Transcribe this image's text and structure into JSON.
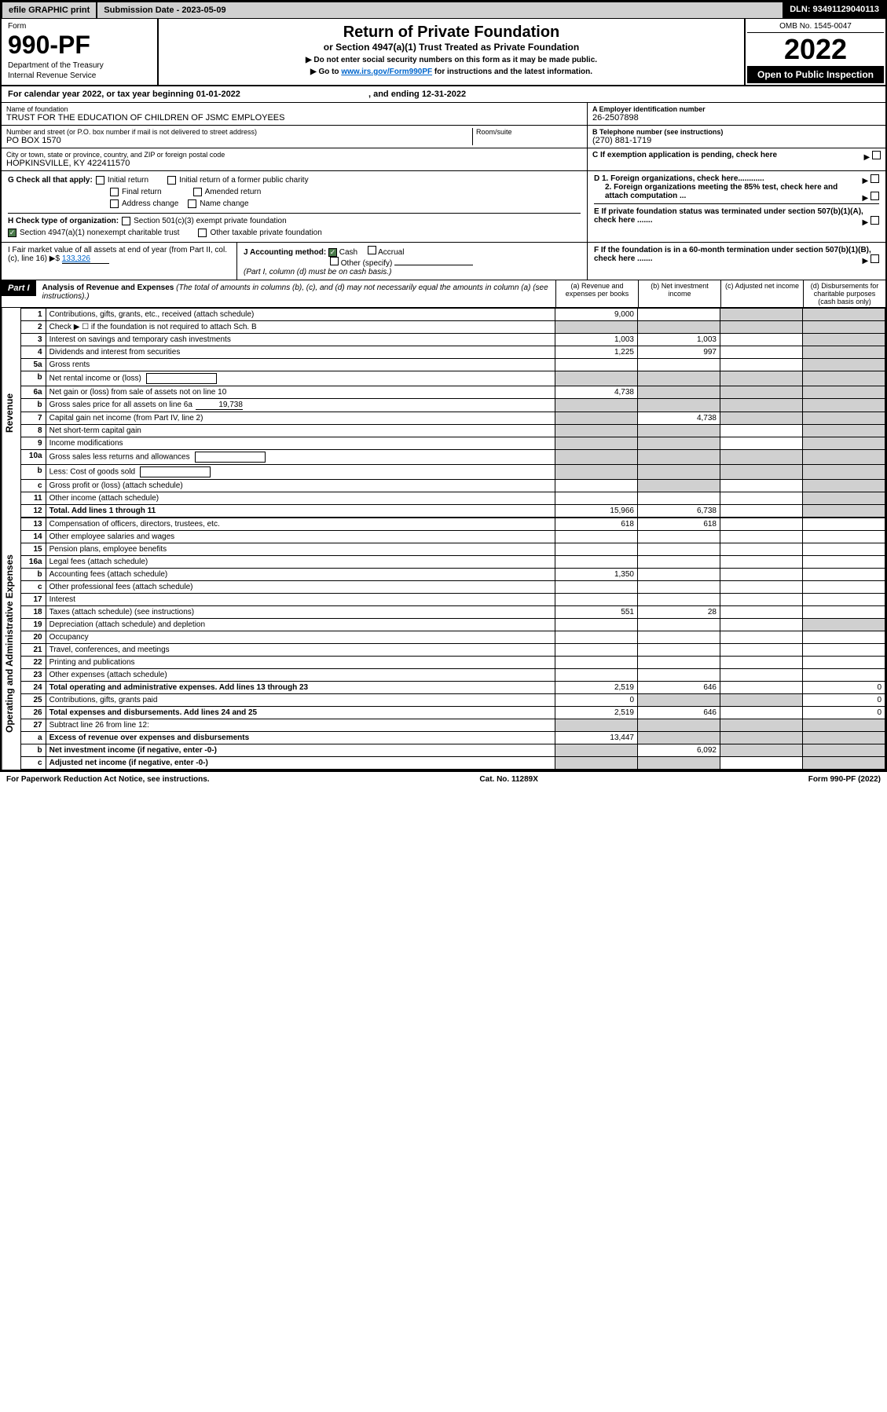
{
  "top": {
    "efile": "efile GRAPHIC print",
    "submission": "Submission Date - 2023-05-09",
    "dln": "DLN: 93491129040113"
  },
  "header": {
    "form_label": "Form",
    "form_num": "990-PF",
    "dept": "Department of the Treasury",
    "irs": "Internal Revenue Service",
    "title": "Return of Private Foundation",
    "subtitle": "or Section 4947(a)(1) Trust Treated as Private Foundation",
    "note1": "▶ Do not enter social security numbers on this form as it may be made public.",
    "note2_pre": "▶ Go to ",
    "note2_link": "www.irs.gov/Form990PF",
    "note2_post": " for instructions and the latest information.",
    "omb": "OMB No. 1545-0047",
    "year": "2022",
    "inspect": "Open to Public Inspection"
  },
  "calyear": "For calendar year 2022, or tax year beginning 01-01-2022",
  "calyear_end": ", and ending 12-31-2022",
  "name_label": "Name of foundation",
  "name": "TRUST FOR THE EDUCATION OF CHILDREN OF JSMC EMPLOYEES",
  "addr_label": "Number and street (or P.O. box number if mail is not delivered to street address)",
  "addr": "PO BOX 1570",
  "room_label": "Room/suite",
  "city_label": "City or town, state or province, country, and ZIP or foreign postal code",
  "city": "HOPKINSVILLE, KY  422411570",
  "ein_label": "A Employer identification number",
  "ein": "26-2507898",
  "tel_label": "B Telephone number (see instructions)",
  "tel": "(270) 881-1719",
  "c_label": "C If exemption application is pending, check here",
  "d1": "D 1. Foreign organizations, check here............",
  "d2": "2. Foreign organizations meeting the 85% test, check here and attach computation ...",
  "e_label": "E  If private foundation status was terminated under section 507(b)(1)(A), check here .......",
  "f_label": "F  If the foundation is in a 60-month termination under section 507(b)(1)(B), check here .......",
  "g_label": "G Check all that apply:",
  "g_opts": [
    "Initial return",
    "Initial return of a former public charity",
    "Final return",
    "Amended return",
    "Address change",
    "Name change"
  ],
  "h_label": "H Check type of organization:",
  "h_501": "Section 501(c)(3) exempt private foundation",
  "h_4947": "Section 4947(a)(1) nonexempt charitable trust",
  "h_other": "Other taxable private foundation",
  "i_label": "I Fair market value of all assets at end of year (from Part II, col. (c), line 16)",
  "i_val": "133,326",
  "j_label": "J Accounting method:",
  "j_cash": "Cash",
  "j_accrual": "Accrual",
  "j_other": "Other (specify)",
  "j_note": "(Part I, column (d) must be on cash basis.)",
  "part1": "Part I",
  "part1_title": "Analysis of Revenue and Expenses",
  "part1_note": "(The total of amounts in columns (b), (c), and (d) may not necessarily equal the amounts in column (a) (see instructions).)",
  "cols": {
    "a": "(a) Revenue and expenses per books",
    "b": "(b) Net investment income",
    "c": "(c) Adjusted net income",
    "d": "(d) Disbursements for charitable purposes (cash basis only)"
  },
  "sections": {
    "revenue": "Revenue",
    "expenses": "Operating and Administrative Expenses"
  },
  "rows": [
    {
      "n": "1",
      "desc": "Contributions, gifts, grants, etc., received (attach schedule)",
      "a": "9,000",
      "b": "",
      "c": "",
      "d": "",
      "d_shade": true,
      "c_shade": true
    },
    {
      "n": "2",
      "desc": "Check ▶ ☐ if the foundation is not required to attach Sch. B",
      "a": "",
      "b": "",
      "c": "",
      "d": "",
      "all_shade": true
    },
    {
      "n": "3",
      "desc": "Interest on savings and temporary cash investments",
      "a": "1,003",
      "b": "1,003",
      "c": "",
      "d": "",
      "d_shade": true
    },
    {
      "n": "4",
      "desc": "Dividends and interest from securities",
      "a": "1,225",
      "b": "997",
      "c": "",
      "d": "",
      "d_shade": true
    },
    {
      "n": "5a",
      "desc": "Gross rents",
      "a": "",
      "b": "",
      "c": "",
      "d": "",
      "d_shade": true
    },
    {
      "n": "b",
      "desc": "Net rental income or (loss)",
      "a": "",
      "b": "",
      "c": "",
      "d": "",
      "all_shade": true,
      "inline_box": true
    },
    {
      "n": "6a",
      "desc": "Net gain or (loss) from sale of assets not on line 10",
      "a": "4,738",
      "b": "",
      "c": "",
      "d": "",
      "bcd_shade": true
    },
    {
      "n": "b",
      "desc": "Gross sales price for all assets on line 6a",
      "inline_val": "19,738",
      "a": "",
      "b": "",
      "c": "",
      "d": "",
      "all_shade": true
    },
    {
      "n": "7",
      "desc": "Capital gain net income (from Part IV, line 2)",
      "a": "",
      "b": "4,738",
      "c": "",
      "d": "",
      "a_shade": true,
      "cd_shade": true
    },
    {
      "n": "8",
      "desc": "Net short-term capital gain",
      "a": "",
      "b": "",
      "c": "",
      "d": "",
      "ab_shade": true,
      "d_shade": true
    },
    {
      "n": "9",
      "desc": "Income modifications",
      "a": "",
      "b": "",
      "c": "",
      "d": "",
      "ab_shade": true,
      "d_shade": true
    },
    {
      "n": "10a",
      "desc": "Gross sales less returns and allowances",
      "a": "",
      "b": "",
      "c": "",
      "d": "",
      "all_shade": true,
      "inline_box": true
    },
    {
      "n": "b",
      "desc": "Less: Cost of goods sold",
      "a": "",
      "b": "",
      "c": "",
      "d": "",
      "all_shade": true,
      "inline_box": true
    },
    {
      "n": "c",
      "desc": "Gross profit or (loss) (attach schedule)",
      "a": "",
      "b": "",
      "c": "",
      "d": "",
      "b_shade": true,
      "d_shade": true
    },
    {
      "n": "11",
      "desc": "Other income (attach schedule)",
      "a": "",
      "b": "",
      "c": "",
      "d": "",
      "d_shade": true
    },
    {
      "n": "12",
      "desc": "Total. Add lines 1 through 11",
      "a": "15,966",
      "b": "6,738",
      "c": "",
      "d": "",
      "d_shade": true,
      "bold": true
    }
  ],
  "exp_rows": [
    {
      "n": "13",
      "desc": "Compensation of officers, directors, trustees, etc.",
      "a": "618",
      "b": "618",
      "c": "",
      "d": ""
    },
    {
      "n": "14",
      "desc": "Other employee salaries and wages",
      "a": "",
      "b": "",
      "c": "",
      "d": ""
    },
    {
      "n": "15",
      "desc": "Pension plans, employee benefits",
      "a": "",
      "b": "",
      "c": "",
      "d": ""
    },
    {
      "n": "16a",
      "desc": "Legal fees (attach schedule)",
      "a": "",
      "b": "",
      "c": "",
      "d": ""
    },
    {
      "n": "b",
      "desc": "Accounting fees (attach schedule)",
      "a": "1,350",
      "b": "",
      "c": "",
      "d": ""
    },
    {
      "n": "c",
      "desc": "Other professional fees (attach schedule)",
      "a": "",
      "b": "",
      "c": "",
      "d": ""
    },
    {
      "n": "17",
      "desc": "Interest",
      "a": "",
      "b": "",
      "c": "",
      "d": ""
    },
    {
      "n": "18",
      "desc": "Taxes (attach schedule) (see instructions)",
      "a": "551",
      "b": "28",
      "c": "",
      "d": ""
    },
    {
      "n": "19",
      "desc": "Depreciation (attach schedule) and depletion",
      "a": "",
      "b": "",
      "c": "",
      "d": "",
      "d_shade": true
    },
    {
      "n": "20",
      "desc": "Occupancy",
      "a": "",
      "b": "",
      "c": "",
      "d": ""
    },
    {
      "n": "21",
      "desc": "Travel, conferences, and meetings",
      "a": "",
      "b": "",
      "c": "",
      "d": ""
    },
    {
      "n": "22",
      "desc": "Printing and publications",
      "a": "",
      "b": "",
      "c": "",
      "d": ""
    },
    {
      "n": "23",
      "desc": "Other expenses (attach schedule)",
      "a": "",
      "b": "",
      "c": "",
      "d": ""
    },
    {
      "n": "24",
      "desc": "Total operating and administrative expenses. Add lines 13 through 23",
      "a": "2,519",
      "b": "646",
      "c": "",
      "d": "0",
      "bold": true
    },
    {
      "n": "25",
      "desc": "Contributions, gifts, grants paid",
      "a": "0",
      "b": "",
      "c": "",
      "d": "0",
      "b_shade": true,
      "c_shade": true
    },
    {
      "n": "26",
      "desc": "Total expenses and disbursements. Add lines 24 and 25",
      "a": "2,519",
      "b": "646",
      "c": "",
      "d": "0",
      "bold": true
    },
    {
      "n": "27",
      "desc": "Subtract line 26 from line 12:",
      "a": "",
      "b": "",
      "c": "",
      "d": "",
      "all_shade": true
    },
    {
      "n": "a",
      "desc": "Excess of revenue over expenses and disbursements",
      "a": "13,447",
      "b": "",
      "c": "",
      "d": "",
      "bcd_shade": true,
      "bold": true
    },
    {
      "n": "b",
      "desc": "Net investment income (if negative, enter -0-)",
      "a": "",
      "b": "6,092",
      "c": "",
      "d": "",
      "a_shade": true,
      "cd_shade": true,
      "bold": true
    },
    {
      "n": "c",
      "desc": "Adjusted net income (if negative, enter -0-)",
      "a": "",
      "b": "",
      "c": "",
      "d": "",
      "ab_shade": true,
      "d_shade": true,
      "bold": true
    }
  ],
  "footer": {
    "left": "For Paperwork Reduction Act Notice, see instructions.",
    "mid": "Cat. No. 11289X",
    "right": "Form 990-PF (2022)"
  }
}
